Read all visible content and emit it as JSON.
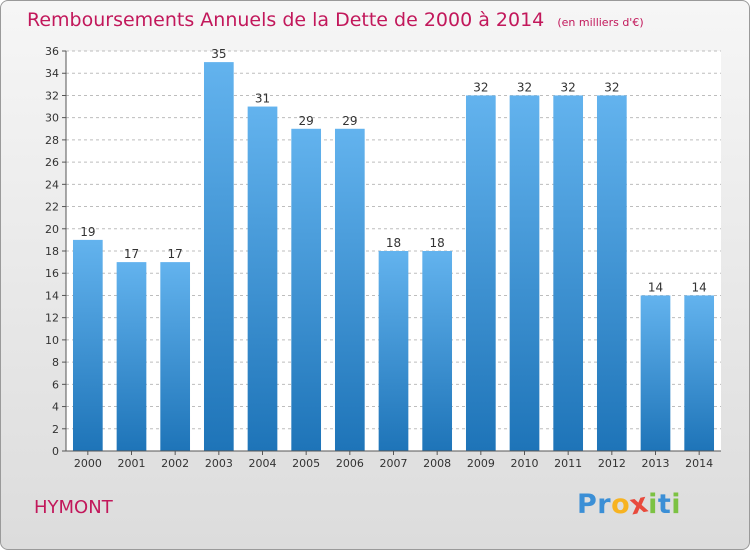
{
  "header": {
    "title": "Remboursements Annuels de la Dette de 2000 à 2014",
    "unit_note": "(en milliers d'€)"
  },
  "footer": {
    "commune": "HYMONT",
    "logo_text": "Proxiti",
    "logo_letters": [
      {
        "ch": "P",
        "color": "#3b8fd6"
      },
      {
        "ch": "r",
        "color": "#3b8fd6"
      },
      {
        "ch": "o",
        "color": "#f7b321"
      },
      {
        "ch": "x",
        "color": "#e84a3c"
      },
      {
        "ch": "i",
        "color": "#7cc243"
      },
      {
        "ch": "t",
        "color": "#3b8fd6"
      },
      {
        "ch": "i",
        "color": "#7cc243"
      }
    ]
  },
  "colors": {
    "title": "#c2185b",
    "bar_top": "#63b3ee",
    "bar_bottom": "#1e74b8",
    "grid": "#bdbdbd"
  },
  "chart_data": {
    "type": "bar",
    "title": "Remboursements Annuels de la Dette de 2000 à 2014",
    "xlabel": "",
    "ylabel": "",
    "categories": [
      "2000",
      "2001",
      "2002",
      "2003",
      "2004",
      "2005",
      "2006",
      "2007",
      "2008",
      "2009",
      "2010",
      "2011",
      "2012",
      "2013",
      "2014"
    ],
    "values": [
      19,
      17,
      17,
      35,
      31,
      29,
      29,
      18,
      18,
      32,
      32,
      32,
      32,
      14,
      14
    ],
    "data_labels": [
      "19",
      "17",
      "17",
      "35",
      "31",
      "29",
      "29",
      "18",
      "18",
      "32",
      "32",
      "32",
      "32",
      "14",
      "14"
    ],
    "ylim": [
      0,
      36
    ],
    "yticks": [
      0,
      2,
      4,
      6,
      8,
      10,
      12,
      14,
      16,
      18,
      20,
      22,
      24,
      26,
      28,
      30,
      32,
      34,
      36
    ],
    "grid": "horizontal dashed",
    "legend": "none"
  }
}
